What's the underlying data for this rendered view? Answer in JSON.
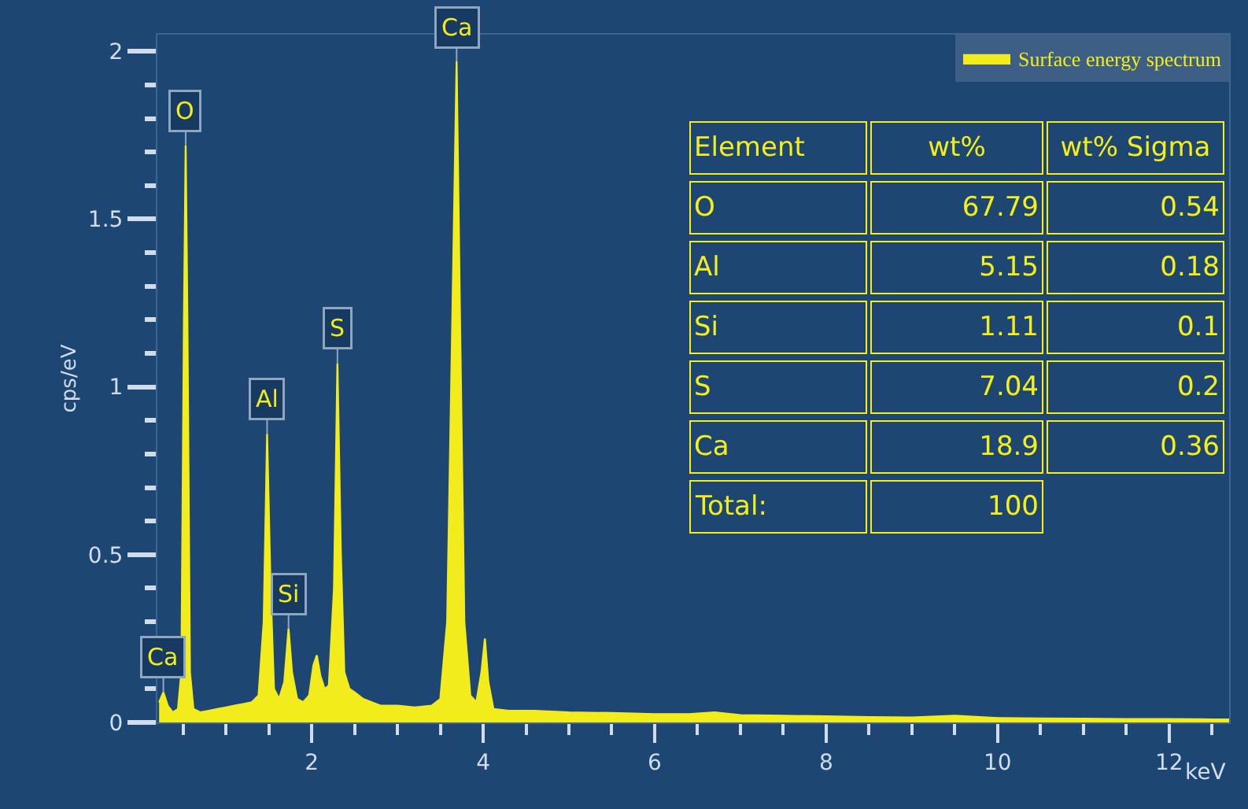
{
  "chart_data": {
    "type": "area",
    "xlabel": "keV",
    "ylabel": "cps/eV",
    "x": [
      0.22,
      0.27,
      0.32,
      0.38,
      0.44,
      0.48,
      0.51,
      0.53,
      0.55,
      0.58,
      0.62,
      0.7,
      0.8,
      0.9,
      1.0,
      1.1,
      1.2,
      1.3,
      1.38,
      1.44,
      1.48,
      1.52,
      1.56,
      1.62,
      1.68,
      1.73,
      1.77,
      1.83,
      1.9,
      1.97,
      2.02,
      2.06,
      2.1,
      2.15,
      2.2,
      2.26,
      2.3,
      2.34,
      2.38,
      2.44,
      2.5,
      2.6,
      2.7,
      2.8,
      3.0,
      3.2,
      3.4,
      3.5,
      3.58,
      3.64,
      3.69,
      3.73,
      3.78,
      3.85,
      3.92,
      3.98,
      4.02,
      4.06,
      4.12,
      4.3,
      4.6,
      5.0,
      5.5,
      6.0,
      6.4,
      6.7,
      7.0,
      7.5,
      8.0,
      8.5,
      9.0,
      9.5,
      10.0,
      10.5,
      11.0,
      11.5,
      12.0,
      12.5,
      12.7
    ],
    "series": [
      {
        "name": "Surface energy spectrum",
        "color": "#f2ec1c",
        "values": [
          0.06,
          0.09,
          0.05,
          0.03,
          0.04,
          0.15,
          1.2,
          1.72,
          1.2,
          0.15,
          0.04,
          0.03,
          0.035,
          0.04,
          0.045,
          0.05,
          0.055,
          0.06,
          0.08,
          0.3,
          0.86,
          0.4,
          0.1,
          0.07,
          0.12,
          0.28,
          0.15,
          0.07,
          0.06,
          0.08,
          0.17,
          0.2,
          0.14,
          0.1,
          0.11,
          0.4,
          1.07,
          0.5,
          0.15,
          0.1,
          0.09,
          0.07,
          0.06,
          0.05,
          0.05,
          0.045,
          0.05,
          0.07,
          0.3,
          1.2,
          1.97,
          1.2,
          0.3,
          0.08,
          0.06,
          0.15,
          0.25,
          0.12,
          0.04,
          0.035,
          0.035,
          0.03,
          0.028,
          0.025,
          0.025,
          0.03,
          0.022,
          0.02,
          0.018,
          0.016,
          0.015,
          0.02,
          0.013,
          0.012,
          0.011,
          0.01,
          0.01,
          0.009,
          0.009
        ]
      }
    ],
    "xlim": [
      0.2,
      12.7
    ],
    "ylim": [
      0,
      2.05
    ],
    "xticks": [
      {
        "value": 0.5,
        "label": null
      },
      {
        "value": 1,
        "label": null
      },
      {
        "value": 1.5,
        "label": null
      },
      2,
      {
        "value": 2.5,
        "label": null
      },
      {
        "value": 3,
        "label": null
      },
      {
        "value": 3.5,
        "label": null
      },
      4,
      {
        "value": 4.5,
        "label": null
      },
      {
        "value": 5,
        "label": null
      },
      {
        "value": 5.5,
        "label": null
      },
      6,
      {
        "value": 6.5,
        "label": null
      },
      {
        "value": 7,
        "label": null
      },
      {
        "value": 7.5,
        "label": null
      },
      8,
      {
        "value": 8.5,
        "label": null
      },
      {
        "value": 9,
        "label": null
      },
      {
        "value": 9.5,
        "label": null
      },
      10,
      {
        "value": 10.5,
        "label": null
      },
      {
        "value": 11,
        "label": null
      },
      {
        "value": 11.5,
        "label": null
      },
      12,
      {
        "value": 12.5,
        "label": null
      }
    ],
    "yticks": [
      0,
      {
        "value": 0.1,
        "label": null
      },
      {
        "value": 0.2,
        "label": null
      },
      {
        "value": 0.3,
        "label": null
      },
      {
        "value": 0.4,
        "label": null
      },
      0.5,
      {
        "value": 0.6,
        "label": null
      },
      {
        "value": 0.7,
        "label": null
      },
      {
        "value": 0.8,
        "label": null
      },
      {
        "value": 0.9,
        "label": null
      },
      1,
      {
        "value": 1.1,
        "label": null
      },
      {
        "value": 1.2,
        "label": null
      },
      {
        "value": 1.3,
        "label": null
      },
      {
        "value": 1.4,
        "label": null
      },
      1.5,
      {
        "value": 1.6,
        "label": null
      },
      {
        "value": 1.7,
        "label": null
      },
      {
        "value": 1.8,
        "label": null
      },
      {
        "value": 1.9,
        "label": null
      },
      2
    ],
    "grid": false,
    "legend": "top right",
    "annotations": [
      {
        "text": "O",
        "x": 0.53,
        "y": 1.72
      },
      {
        "text": "Al",
        "x": 1.48,
        "y": 0.86
      },
      {
        "text": "Si",
        "x": 1.73,
        "y": 0.28
      },
      {
        "text": "S",
        "x": 2.3,
        "y": 1.07
      },
      {
        "text": "Ca",
        "x": 3.69,
        "y": 1.97
      },
      {
        "text": "Ca",
        "x": 0.27,
        "y": 0.09
      },
      "Element",
      "wt%",
      "wt% Sigma",
      "O",
      "67.79",
      "0.54",
      "Al",
      "5.15",
      "0.18",
      "Si",
      "1.11",
      "0.1",
      "S",
      "7.04",
      "0.2",
      "Ca",
      "18.9",
      "0.36",
      "Total:",
      "100"
    ]
  }
}
